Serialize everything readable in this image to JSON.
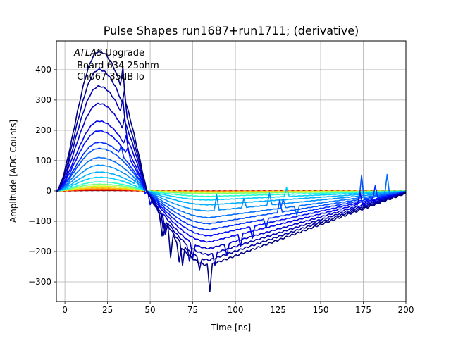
{
  "chart_data": {
    "type": "line",
    "title": "Pulse Shapes run1687+run1711; (derivative)",
    "xlabel": "Time [ns]",
    "ylabel": "Amplitude [ADC Counts]",
    "xlim": [
      -5,
      200
    ],
    "ylim": [
      -365,
      495
    ],
    "xticks": [
      0,
      25,
      50,
      75,
      100,
      125,
      150,
      175,
      200
    ],
    "yticks": [
      -300,
      -200,
      -100,
      0,
      100,
      200,
      300,
      400
    ],
    "grid": true,
    "annotation": {
      "line1_italic": "ATLAS",
      "line1_rest": " Upgrade",
      "line2": " Board 634 25ohm",
      "line3": " Ch067 35dB lo"
    },
    "series": [
      {
        "color": "#00007f",
        "peak": 460,
        "trough": -245,
        "spikes": [
          [
            34,
            80
          ],
          [
            57,
            -60
          ],
          [
            62,
            -80
          ],
          [
            67,
            -60
          ],
          [
            85,
            -85
          ]
        ]
      },
      {
        "color": "#00009c",
        "peak": 400,
        "trough": -228,
        "spikes": [
          [
            35,
            70
          ],
          [
            58,
            -50
          ],
          [
            69,
            -70
          ],
          [
            79,
            -40
          ]
        ]
      },
      {
        "color": "#0000b5",
        "peak": 345,
        "trough": -210,
        "spikes": [
          [
            34,
            60
          ],
          [
            59,
            -50
          ],
          [
            73,
            -50
          ],
          [
            88,
            -40
          ]
        ]
      },
      {
        "color": "#0000d0",
        "peak": 288,
        "trough": -190,
        "spikes": [
          [
            35,
            50
          ],
          [
            56,
            -40
          ],
          [
            75,
            -50
          ],
          [
            95,
            -40
          ]
        ]
      },
      {
        "color": "#0000ec",
        "peak": 230,
        "trough": -168,
        "spikes": [
          [
            36,
            40
          ],
          [
            50,
            -30
          ],
          [
            103,
            -40
          ],
          [
            173,
            40
          ]
        ]
      },
      {
        "color": "#0010ff",
        "peak": 198,
        "trough": -148,
        "spikes": [
          [
            37,
            30
          ],
          [
            47,
            -20
          ],
          [
            110,
            -40
          ]
        ]
      },
      {
        "color": "#0030ff",
        "peak": 160,
        "trough": -128,
        "spikes": [
          [
            33,
            30
          ],
          [
            51,
            -20
          ],
          [
            118,
            -30
          ],
          [
            182,
            40
          ]
        ]
      },
      {
        "color": "#0050ff",
        "peak": 140,
        "trough": -108,
        "spikes": [
          [
            126,
            40
          ],
          [
            174,
            80
          ]
        ]
      },
      {
        "color": "#0070ff",
        "peak": 110,
        "trough": -88,
        "spikes": [
          [
            128,
            30
          ],
          [
            136,
            -30
          ],
          [
            189,
            65
          ]
        ]
      },
      {
        "color": "#0090ff",
        "peak": 85,
        "trough": -66,
        "spikes": [
          [
            89,
            50
          ],
          [
            105,
            30
          ],
          [
            120,
            40
          ]
        ]
      },
      {
        "color": "#00b0ff",
        "peak": 62,
        "trough": -46,
        "spikes": [
          [
            42,
            20
          ]
        ]
      },
      {
        "color": "#00d0ff",
        "peak": 45,
        "trough": -30,
        "spikes": [
          [
            130,
            30
          ]
        ]
      },
      {
        "color": "#29ffce",
        "peak": 30,
        "trough": -18,
        "spikes": []
      },
      {
        "color": "#7dff7a",
        "peak": 22,
        "trough": -9,
        "spikes": []
      },
      {
        "color": "#ceff29",
        "peak": 16,
        "trough": -5,
        "spikes": []
      },
      {
        "color": "#ffc400",
        "peak": 10,
        "trough": -3,
        "spikes": []
      },
      {
        "color": "#ff6800",
        "peak": 6,
        "trough": -2,
        "spikes": []
      },
      {
        "color": "#e80000",
        "peak": 3,
        "trough": -1,
        "spikes": []
      },
      {
        "color": "#7f0000",
        "peak": 1.5,
        "trough": -0.5,
        "spikes": []
      }
    ]
  }
}
